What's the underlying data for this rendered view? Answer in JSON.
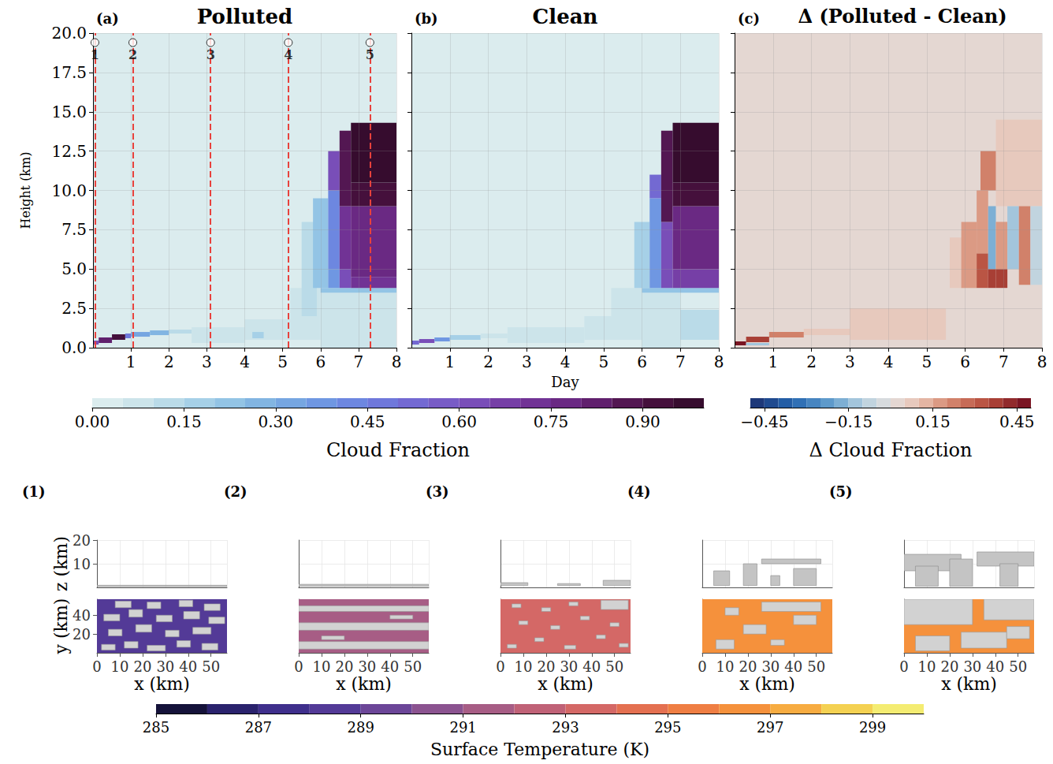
{
  "chart_data": [
    {
      "type": "heatmap",
      "panel": "(a)",
      "title": "Polluted",
      "ylabel": "Height (km)",
      "xlim": [
        0,
        8
      ],
      "xticks": [
        1,
        2,
        3,
        4,
        5,
        6,
        7,
        8
      ],
      "ylim": [
        0,
        20
      ],
      "yticks": [
        {
          "value": 0,
          "label": "0.0"
        },
        {
          "value": 2.5,
          "label": "2.5"
        },
        {
          "value": 5,
          "label": "5.0"
        },
        {
          "value": 7.5,
          "label": "7.5"
        },
        {
          "value": 10,
          "label": "10.0"
        },
        {
          "value": 12.5,
          "label": "12.5"
        },
        {
          "value": 15,
          "label": "15.0"
        },
        {
          "value": 17.5,
          "label": "17.5"
        },
        {
          "value": 20,
          "label": "20.0"
        }
      ],
      "grid": true,
      "tick_labels": true,
      "colorbar": "Cloud Fraction",
      "cells": [
        [
          0,
          8,
          0,
          20,
          0.02
        ],
        [
          0,
          0.15,
          0.2,
          0.45,
          0.6
        ],
        [
          0.15,
          0.5,
          0.3,
          0.65,
          0.8
        ],
        [
          0.5,
          0.85,
          0.5,
          0.85,
          0.9
        ],
        [
          0.85,
          1.0,
          0.6,
          0.9,
          0.45
        ],
        [
          1.0,
          1.5,
          0.7,
          1.0,
          0.3
        ],
        [
          1.5,
          2.0,
          0.8,
          1.1,
          0.25
        ],
        [
          2.0,
          2.6,
          0.9,
          1.15,
          0.12
        ],
        [
          2.6,
          4,
          0.3,
          1.3,
          0.07
        ],
        [
          4,
          5.2,
          0.5,
          1.8,
          0.07
        ],
        [
          4.2,
          4.5,
          0.6,
          1.0,
          0.15
        ],
        [
          5.2,
          6,
          0.5,
          3.8,
          0.09
        ],
        [
          5.5,
          5.9,
          2.0,
          8,
          0.1
        ],
        [
          6,
          8,
          0,
          3.5,
          0.08
        ],
        [
          6,
          8,
          3.5,
          3.8,
          0.2
        ],
        [
          5.8,
          6.2,
          3.8,
          9.5,
          0.2
        ],
        [
          6.2,
          6.5,
          3.8,
          5,
          0.35
        ],
        [
          6.2,
          6.5,
          5,
          10,
          0.4
        ],
        [
          6.2,
          6.5,
          10,
          12.5,
          0.6
        ],
        [
          6.5,
          6.8,
          3.8,
          5,
          0.6
        ],
        [
          6.5,
          6.8,
          5,
          9,
          0.7
        ],
        [
          6.5,
          6.8,
          9,
          13.8,
          0.85
        ],
        [
          6.8,
          8,
          3.8,
          4.5,
          0.7
        ],
        [
          6.8,
          8,
          4.5,
          9,
          0.75
        ],
        [
          6.8,
          8,
          9,
          10.5,
          0.9
        ],
        [
          6.8,
          8,
          10.5,
          14.3,
          0.97
        ]
      ],
      "markers": [
        {
          "label": "1",
          "x": 0.05,
          "y": 19.4
        },
        {
          "label": "2",
          "x": 1.05,
          "y": 19.4
        },
        {
          "label": "3",
          "x": 3.1,
          "y": 19.4
        },
        {
          "label": "4",
          "x": 5.15,
          "y": 19.4
        },
        {
          "label": "5",
          "x": 7.3,
          "y": 19.4
        }
      ]
    },
    {
      "type": "heatmap",
      "panel": "(b)",
      "title": "Clean",
      "xlabel": "Day",
      "xlim": [
        0,
        8
      ],
      "xticks": [
        1,
        2,
        3,
        4,
        5,
        6,
        7,
        8
      ],
      "ylim": [
        0,
        20
      ],
      "yticks": [
        0,
        2.5,
        5,
        7.5,
        10,
        12.5,
        15,
        17.5,
        20
      ],
      "grid": true,
      "tick_labels": "x",
      "colorbar": "Cloud Fraction",
      "cells": [
        [
          0,
          8,
          0,
          20,
          0.02
        ],
        [
          0,
          0.2,
          0.2,
          0.45,
          0.5
        ],
        [
          0.2,
          0.6,
          0.3,
          0.55,
          0.6
        ],
        [
          0.6,
          1.0,
          0.4,
          0.65,
          0.35
        ],
        [
          1.0,
          1.8,
          0.5,
          0.8,
          0.15
        ],
        [
          1.8,
          2.5,
          0.6,
          0.9,
          0.08
        ],
        [
          2.5,
          4.5,
          0.3,
          1.3,
          0.06
        ],
        [
          4.5,
          5.5,
          0.5,
          2.0,
          0.06
        ],
        [
          5.2,
          6,
          0.5,
          3.8,
          0.08
        ],
        [
          6,
          7,
          0,
          3.5,
          0.07
        ],
        [
          7,
          8,
          0.5,
          2.4,
          0.12
        ],
        [
          6,
          8,
          3.5,
          3.8,
          0.2
        ],
        [
          5.8,
          6.2,
          3.8,
          8,
          0.15
        ],
        [
          6.2,
          6.5,
          3.8,
          9.5,
          0.35
        ],
        [
          6.2,
          6.5,
          9.5,
          11,
          0.5
        ],
        [
          6.5,
          6.8,
          3.8,
          8,
          0.6
        ],
        [
          6.5,
          6.8,
          8,
          13.8,
          0.85
        ],
        [
          6.8,
          8,
          3.8,
          5,
          0.65
        ],
        [
          6.8,
          8,
          5,
          9,
          0.75
        ],
        [
          6.8,
          8,
          9,
          10.5,
          0.9
        ],
        [
          6.8,
          8,
          10.5,
          14.3,
          0.97
        ]
      ]
    },
    {
      "type": "heatmap",
      "panel": "(c)",
      "title": "Δ (Polluted - Clean)",
      "xlim": [
        0,
        8
      ],
      "xticks": [
        1,
        2,
        3,
        4,
        5,
        6,
        7,
        8
      ],
      "ylim": [
        0,
        20
      ],
      "yticks": [
        0,
        2.5,
        5,
        7.5,
        10,
        12.5,
        15,
        17.5,
        20
      ],
      "grid": true,
      "tick_labels": "x",
      "colorbar": "Δ Cloud Fraction",
      "cells": [
        [
          0,
          8,
          0,
          20,
          0
        ],
        [
          3,
          5.5,
          0.5,
          2.5,
          0.06
        ],
        [
          1.8,
          3,
          0.8,
          1.2,
          0.07
        ],
        [
          6.8,
          8,
          9,
          14.5,
          0.06
        ],
        [
          5.6,
          6.0,
          3.8,
          7,
          0.08
        ],
        [
          0,
          0.3,
          0.15,
          0.4,
          0.45
        ],
        [
          0.3,
          0.9,
          0.35,
          0.7,
          0.35
        ],
        [
          0.9,
          1.8,
          0.65,
          1.0,
          0.2
        ],
        [
          0.3,
          0.9,
          0.15,
          0.3,
          -0.15
        ],
        [
          5.9,
          6.3,
          3.8,
          8,
          0.15
        ],
        [
          6.3,
          6.6,
          3.8,
          6,
          0.3
        ],
        [
          6.3,
          6.6,
          6,
          10,
          0.15
        ],
        [
          6.4,
          6.8,
          10,
          12.5,
          0.2
        ],
        [
          6.6,
          6.8,
          3.8,
          5,
          0.35
        ],
        [
          6.6,
          6.8,
          5,
          9,
          -0.2
        ],
        [
          6.8,
          7.1,
          3.8,
          5,
          0.35
        ],
        [
          6.8,
          7.1,
          5,
          8,
          0.15
        ],
        [
          7.1,
          7.4,
          5,
          9,
          -0.15
        ],
        [
          7.4,
          7.7,
          4,
          9,
          0.2
        ],
        [
          7.7,
          8,
          4,
          9,
          -0.1
        ]
      ]
    },
    {
      "type": "colorbar",
      "label": "Cloud Fraction",
      "xlim": [
        0,
        1
      ],
      "xticks": [
        {
          "value": 0,
          "label": "0.00"
        },
        {
          "value": 0.15,
          "label": "0.15"
        },
        {
          "value": 0.3,
          "label": "0.30"
        },
        {
          "value": 0.45,
          "label": "0.45"
        },
        {
          "value": 0.6,
          "label": "0.60"
        },
        {
          "value": 0.75,
          "label": "0.75"
        },
        {
          "value": 0.9,
          "label": "0.90"
        }
      ],
      "levels": [
        0,
        0.05,
        0.1,
        0.15,
        0.2,
        0.25,
        0.3,
        0.35,
        0.4,
        0.45,
        0.5,
        0.55,
        0.6,
        0.65,
        0.7,
        0.75,
        0.8,
        0.85,
        0.9,
        0.95,
        1
      ]
    },
    {
      "type": "colorbar",
      "label": "Δ Cloud Fraction",
      "xlim": [
        -0.5,
        0.5
      ],
      "xticks": [
        {
          "value": -0.45,
          "label": "−0.45"
        },
        {
          "value": -0.15,
          "label": "−0.15"
        },
        {
          "value": 0.15,
          "label": "0.15"
        },
        {
          "value": 0.45,
          "label": "0.45"
        }
      ],
      "levels": [
        -0.5,
        -0.45,
        -0.4,
        -0.35,
        -0.3,
        -0.25,
        -0.2,
        -0.15,
        -0.1,
        -0.05,
        0,
        0.05,
        0.1,
        0.15,
        0.2,
        0.25,
        0.3,
        0.35,
        0.4,
        0.45,
        0.5
      ]
    },
    {
      "type": "colorbar",
      "label": "Surface Temperature (K)",
      "xlim": [
        285,
        300
      ],
      "xticks": [
        285,
        287,
        289,
        291,
        293,
        295,
        297,
        299
      ],
      "levels": [
        285,
        286,
        287,
        288,
        289,
        290,
        291,
        292,
        293,
        294,
        295,
        296,
        297,
        298,
        299,
        300
      ]
    },
    {
      "type": "surface",
      "panel": "(1)",
      "surface_temperature": 288.5,
      "colorbar": "Surface Temperature (K)",
      "xlabel": "x (km)",
      "ylabel": "y (km)",
      "zlabel": "z (km)",
      "tick_labels": true,
      "grid": true,
      "xlim": [
        0,
        57
      ],
      "xticks": [
        0,
        10,
        20,
        30,
        40,
        50
      ],
      "ylim": [
        0,
        57
      ],
      "yticks": [
        20,
        40
      ],
      "zlim": [
        0,
        20
      ],
      "zticks": [
        10,
        20
      ],
      "clouds": [
        [
          2,
          8,
          3,
          9
        ],
        [
          12,
          18,
          5,
          12
        ],
        [
          22,
          30,
          2,
          8
        ],
        [
          35,
          41,
          6,
          13
        ],
        [
          46,
          53,
          3,
          10
        ],
        [
          5,
          11,
          18,
          25
        ],
        [
          17,
          24,
          22,
          30
        ],
        [
          30,
          36,
          17,
          24
        ],
        [
          42,
          50,
          20,
          27
        ],
        [
          3,
          10,
          34,
          41
        ],
        [
          14,
          20,
          38,
          46
        ],
        [
          26,
          33,
          33,
          40
        ],
        [
          38,
          45,
          36,
          44
        ],
        [
          49,
          56,
          31,
          38
        ],
        [
          8,
          15,
          48,
          55
        ],
        [
          22,
          28,
          47,
          54
        ],
        [
          36,
          42,
          49,
          56
        ],
        [
          47,
          54,
          45,
          52
        ]
      ],
      "cloud_columns": [
        [
          0,
          57,
          0.3,
          0.9
        ]
      ]
    },
    {
      "type": "surface",
      "panel": "(2)",
      "surface_temperature": 291.3,
      "colorbar": "Surface Temperature (K)",
      "xlabel": "x (km)",
      "tick_labels": "x",
      "grid": true,
      "xlim": [
        0,
        57
      ],
      "xticks": [
        0,
        10,
        20,
        30,
        40,
        50
      ],
      "ylim": [
        0,
        57
      ],
      "yticks": [
        20,
        40
      ],
      "zlim": [
        0,
        20
      ],
      "zticks": [
        10,
        20
      ],
      "clouds": [
        [
          0,
          57,
          4,
          12
        ],
        [
          0,
          57,
          24,
          32
        ],
        [
          0,
          57,
          44,
          50
        ],
        [
          10,
          20,
          14,
          18
        ],
        [
          40,
          50,
          36,
          40
        ]
      ],
      "cloud_columns": [
        [
          0,
          57,
          0.5,
          1.3
        ]
      ]
    },
    {
      "type": "surface",
      "panel": "(3)",
      "surface_temperature": 293,
      "colorbar": "Surface Temperature (K)",
      "xlabel": "x (km)",
      "tick_labels": "x",
      "grid": true,
      "xlim": [
        0,
        57
      ],
      "xticks": [
        0,
        10,
        20,
        30,
        40,
        50
      ],
      "ylim": [
        0,
        57
      ],
      "yticks": [
        20,
        40
      ],
      "zlim": [
        0,
        20
      ],
      "zticks": [
        10,
        20
      ],
      "clouds": [
        [
          3,
          7,
          5,
          9
        ],
        [
          15,
          19,
          12,
          16
        ],
        [
          28,
          33,
          4,
          8
        ],
        [
          42,
          46,
          15,
          19
        ],
        [
          52,
          56,
          6,
          10
        ],
        [
          8,
          12,
          30,
          34
        ],
        [
          22,
          26,
          25,
          29
        ],
        [
          35,
          39,
          35,
          39
        ],
        [
          48,
          52,
          28,
          32
        ],
        [
          5,
          9,
          48,
          52
        ],
        [
          18,
          22,
          44,
          48
        ],
        [
          30,
          34,
          50,
          54
        ],
        [
          44,
          56,
          46,
          56
        ]
      ],
      "cloud_columns": [
        [
          0,
          12,
          0.8,
          2
        ],
        [
          25,
          35,
          0.8,
          1.6
        ],
        [
          45,
          57,
          0.8,
          3
        ]
      ]
    },
    {
      "type": "surface",
      "panel": "(4)",
      "surface_temperature": 296,
      "colorbar": "Surface Temperature (K)",
      "xlabel": "x (km)",
      "tick_labels": "x",
      "grid": true,
      "xlim": [
        0,
        57
      ],
      "xticks": [
        0,
        10,
        20,
        30,
        40,
        50
      ],
      "ylim": [
        0,
        57
      ],
      "yticks": [
        20,
        40
      ],
      "zlim": [
        0,
        20
      ],
      "zticks": [
        10,
        20
      ],
      "clouds": [
        [
          6,
          14,
          4,
          14
        ],
        [
          18,
          28,
          20,
          30
        ],
        [
          30,
          36,
          8,
          14
        ],
        [
          40,
          50,
          30,
          40
        ],
        [
          10,
          16,
          40,
          48
        ],
        [
          26,
          52,
          44,
          54
        ]
      ],
      "cloud_columns": [
        [
          5,
          12,
          0.8,
          7
        ],
        [
          18,
          24,
          0.8,
          10
        ],
        [
          30,
          34,
          0.8,
          5
        ],
        [
          40,
          50,
          0.8,
          8
        ],
        [
          26,
          52,
          10,
          12
        ]
      ]
    },
    {
      "type": "surface",
      "panel": "(5)",
      "surface_temperature": 296.2,
      "colorbar": "Surface Temperature (K)",
      "xlabel": "x (km)",
      "tick_labels": "x",
      "grid": true,
      "xlim": [
        0,
        57
      ],
      "xticks": [
        0,
        10,
        20,
        30,
        40,
        50
      ],
      "ylim": [
        0,
        57
      ],
      "yticks": [
        20,
        40
      ],
      "zlim": [
        0,
        20
      ],
      "zticks": [
        10,
        20
      ],
      "clouds": [
        [
          0,
          30,
          30,
          57
        ],
        [
          35,
          57,
          35,
          57
        ],
        [
          5,
          20,
          2,
          18
        ],
        [
          25,
          45,
          5,
          22
        ],
        [
          45,
          55,
          15,
          28
        ]
      ],
      "cloud_columns": [
        [
          0,
          25,
          7,
          14
        ],
        [
          32,
          57,
          9,
          15
        ],
        [
          5,
          15,
          0.5,
          9
        ],
        [
          20,
          30,
          0.5,
          12
        ],
        [
          42,
          50,
          0.5,
          10
        ]
      ]
    }
  ]
}
